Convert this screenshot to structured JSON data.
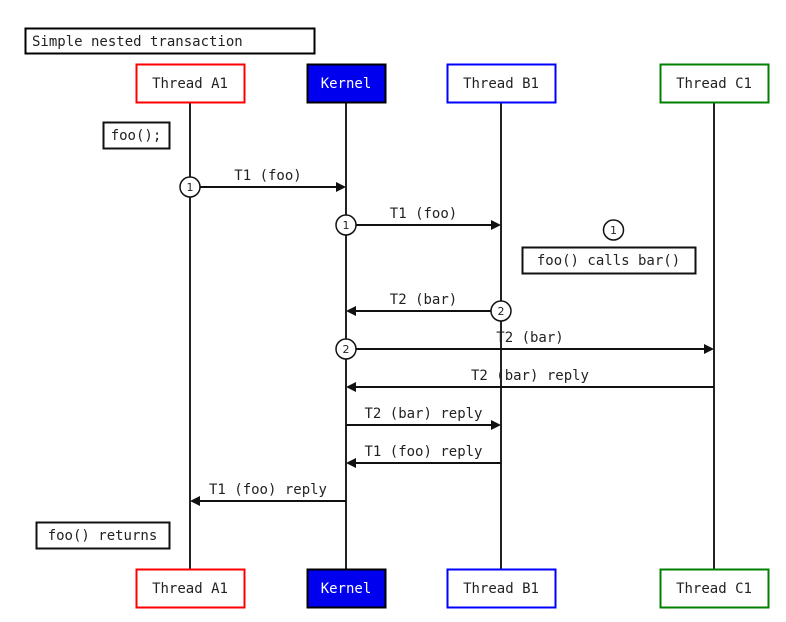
{
  "title": "Simple nested transaction",
  "participants": [
    {
      "name": "Thread A1",
      "border_color": "#ff0000",
      "fill_color": "#ffffff",
      "text_color": "#222222"
    },
    {
      "name": "Kernel",
      "border_color": "#000000",
      "fill_color": "#0000ee",
      "text_color": "#ffffff"
    },
    {
      "name": "Thread B1",
      "border_color": "#0000ff",
      "fill_color": "#ffffff",
      "text_color": "#222222"
    },
    {
      "name": "Thread C1",
      "border_color": "#008000",
      "fill_color": "#ffffff",
      "text_color": "#222222"
    }
  ],
  "messages": [
    {
      "from": 0,
      "to": 1,
      "label": "T1 (foo)",
      "marker": "1"
    },
    {
      "from": 1,
      "to": 2,
      "label": "T1 (foo)",
      "marker": "1"
    },
    {
      "from": 2,
      "to": 1,
      "label": "T2 (bar)",
      "marker": "2"
    },
    {
      "from": 1,
      "to": 3,
      "label": "T2 (bar)",
      "marker": "2"
    },
    {
      "from": 3,
      "to": 1,
      "label": "T2 (bar) reply",
      "marker": ""
    },
    {
      "from": 1,
      "to": 2,
      "label": "T2 (bar) reply",
      "marker": ""
    },
    {
      "from": 2,
      "to": 1,
      "label": "T1 (foo) reply",
      "marker": ""
    },
    {
      "from": 1,
      "to": 0,
      "label": "T1 (foo) reply",
      "marker": ""
    }
  ],
  "notes": [
    {
      "text": "foo();",
      "marker": ""
    },
    {
      "text": "foo() calls bar()",
      "marker": "1"
    },
    {
      "text": "foo() returns",
      "marker": ""
    }
  ]
}
